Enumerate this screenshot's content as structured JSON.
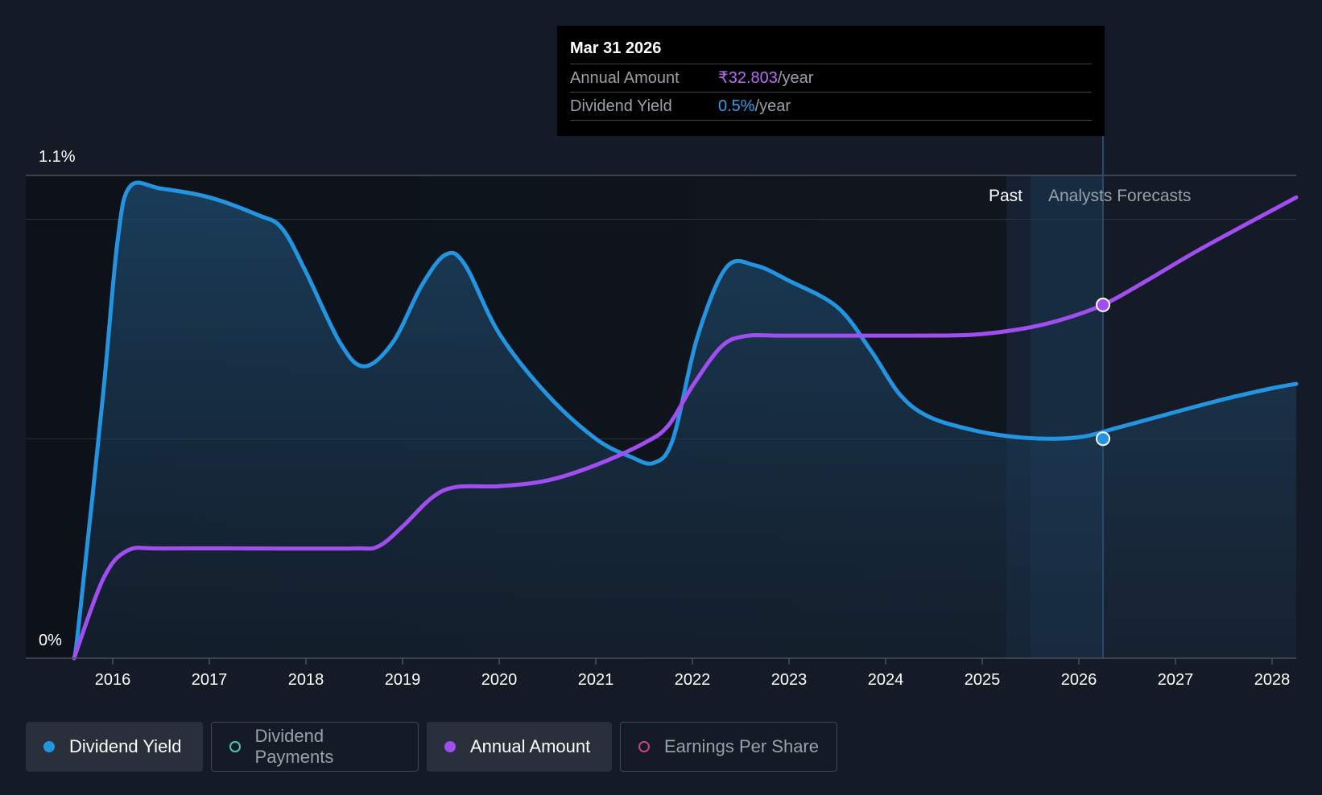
{
  "chart_data": {
    "type": "line",
    "y_axis": {
      "top_label": "1.1%",
      "bottom_label": "0%",
      "ylim": [
        0,
        1.1
      ],
      "unit": "%"
    },
    "x_ticks": [
      "2016",
      "2017",
      "2018",
      "2019",
      "2020",
      "2021",
      "2022",
      "2023",
      "2024",
      "2025",
      "2026",
      "2027",
      "2028"
    ],
    "xlim": [
      2015.1,
      2028.25
    ],
    "past_label": "Past",
    "forecast_label": "Analysts Forecasts",
    "forecast_start": 2025.5,
    "series": [
      {
        "name": "Dividend Yield",
        "color": "#2394df",
        "unit": "%",
        "points": [
          [
            2015.6,
            0.0
          ],
          [
            2015.65,
            0.08
          ],
          [
            2015.9,
            0.6
          ],
          [
            2016.05,
            0.95
          ],
          [
            2016.18,
            1.075
          ],
          [
            2016.5,
            1.07
          ],
          [
            2017.0,
            1.05
          ],
          [
            2017.5,
            1.01
          ],
          [
            2017.75,
            0.98
          ],
          [
            2018.0,
            0.88
          ],
          [
            2018.35,
            0.72
          ],
          [
            2018.6,
            0.665
          ],
          [
            2018.9,
            0.72
          ],
          [
            2019.2,
            0.85
          ],
          [
            2019.45,
            0.92
          ],
          [
            2019.65,
            0.895
          ],
          [
            2020.0,
            0.74
          ],
          [
            2020.5,
            0.6
          ],
          [
            2021.0,
            0.5
          ],
          [
            2021.35,
            0.46
          ],
          [
            2021.6,
            0.445
          ],
          [
            2021.8,
            0.5
          ],
          [
            2022.05,
            0.73
          ],
          [
            2022.35,
            0.89
          ],
          [
            2022.65,
            0.895
          ],
          [
            2023.0,
            0.86
          ],
          [
            2023.5,
            0.8
          ],
          [
            2023.85,
            0.7
          ],
          [
            2024.15,
            0.6
          ],
          [
            2024.45,
            0.55
          ],
          [
            2024.9,
            0.52
          ],
          [
            2025.3,
            0.505
          ],
          [
            2025.7,
            0.5
          ],
          [
            2026.05,
            0.505
          ],
          [
            2026.4,
            0.525
          ],
          [
            2026.9,
            0.555
          ],
          [
            2027.5,
            0.59
          ],
          [
            2028.0,
            0.615
          ],
          [
            2028.25,
            0.625
          ]
        ]
      },
      {
        "name": "Annual Amount",
        "color": "#a14ef0",
        "points": [
          [
            2015.6,
            0.0
          ],
          [
            2015.9,
            0.18
          ],
          [
            2016.15,
            0.245
          ],
          [
            2016.5,
            0.25
          ],
          [
            2017.5,
            0.25
          ],
          [
            2018.5,
            0.25
          ],
          [
            2018.75,
            0.255
          ],
          [
            2019.0,
            0.3
          ],
          [
            2019.3,
            0.365
          ],
          [
            2019.55,
            0.39
          ],
          [
            2020.0,
            0.392
          ],
          [
            2020.5,
            0.405
          ],
          [
            2021.0,
            0.44
          ],
          [
            2021.5,
            0.49
          ],
          [
            2021.75,
            0.53
          ],
          [
            2022.0,
            0.62
          ],
          [
            2022.3,
            0.71
          ],
          [
            2022.55,
            0.734
          ],
          [
            2022.9,
            0.735
          ],
          [
            2023.5,
            0.735
          ],
          [
            2024.3,
            0.735
          ],
          [
            2024.9,
            0.737
          ],
          [
            2025.4,
            0.75
          ],
          [
            2025.8,
            0.77
          ],
          [
            2026.25,
            0.805
          ],
          [
            2026.7,
            0.86
          ],
          [
            2027.2,
            0.925
          ],
          [
            2027.7,
            0.985
          ],
          [
            2028.25,
            1.05
          ]
        ]
      }
    ],
    "highlight": {
      "x": 2026.25,
      "yield": 0.5,
      "annual_marker": 0.805
    }
  },
  "tooltip": {
    "date": "Mar 31 2026",
    "annual_label": "Annual Amount",
    "annual_value": "₹32.803",
    "annual_suffix": "/year",
    "yield_label": "Dividend Yield",
    "yield_value": "0.5%",
    "yield_suffix": "/year"
  },
  "legend": [
    {
      "label": "Dividend Yield",
      "active": true,
      "color": "#2394df",
      "filled": true
    },
    {
      "label": "Dividend Payments",
      "active": false,
      "color": "#47c6b8",
      "filled": false
    },
    {
      "label": "Annual Amount",
      "active": true,
      "color": "#a14ef0",
      "filled": true
    },
    {
      "label": "Earnings Per Share",
      "active": false,
      "color": "#c9457a",
      "filled": false
    }
  ]
}
